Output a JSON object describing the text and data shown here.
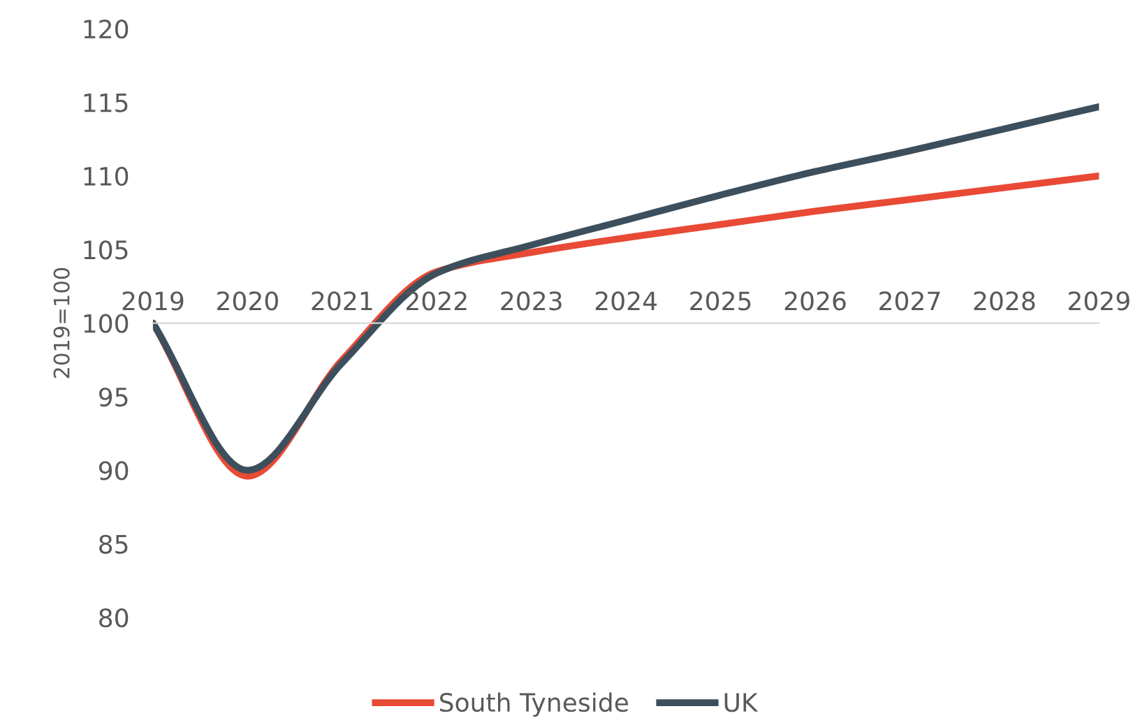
{
  "chart_data": {
    "type": "line",
    "ylabel": "2019=100",
    "categories": [
      "2019",
      "2020",
      "2021",
      "2022",
      "2023",
      "2024",
      "2025",
      "2026",
      "2027",
      "2028",
      "2029"
    ],
    "series": [
      {
        "name": "South Tyneside",
        "color": "#e84a35",
        "values": [
          100,
          89.6,
          97.5,
          103.5,
          104.8,
          105.8,
          106.7,
          107.6,
          108.4,
          109.2,
          110.0
        ]
      },
      {
        "name": "UK",
        "color": "#3d4f5c",
        "values": [
          100,
          90.0,
          97.3,
          103.4,
          105.3,
          107.0,
          108.7,
          110.3,
          111.7,
          113.2,
          114.7
        ]
      }
    ],
    "ylim": [
      80,
      120
    ],
    "yticks": [
      80,
      85,
      90,
      95,
      100,
      105,
      110,
      115,
      120
    ],
    "grid": false,
    "legend": "bottom",
    "marker": "none",
    "line_style": "solid"
  }
}
